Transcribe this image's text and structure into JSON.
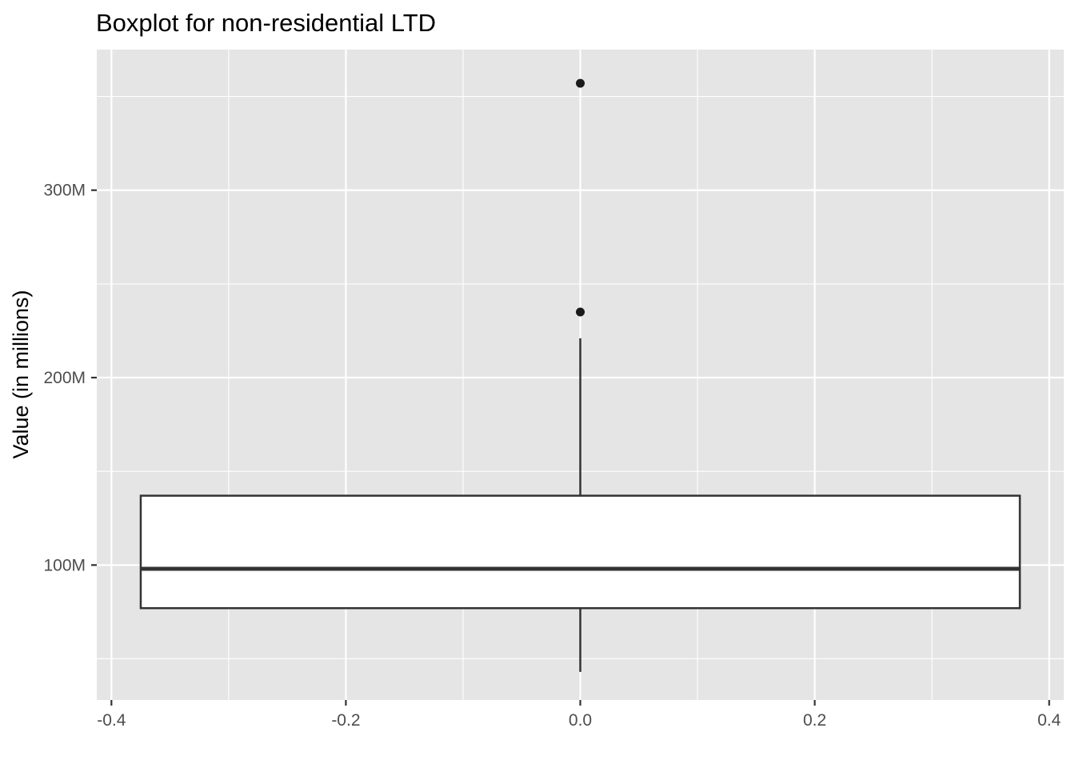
{
  "chart_data": {
    "type": "boxplot",
    "title": "Boxplot for non-residential LTD",
    "xlabel": "",
    "ylabel": "Value (in millions)",
    "x_ticks": [
      -0.4,
      -0.2,
      0.0,
      0.2,
      0.4
    ],
    "x_tick_labels": [
      "-0.4",
      "-0.2",
      "0.0",
      "0.2",
      "0.4"
    ],
    "y_ticks": [
      100,
      200,
      300
    ],
    "y_tick_labels": [
      "100M",
      "200M",
      "300M"
    ],
    "xlim": [
      -0.4125,
      0.4125
    ],
    "ylim": [
      28,
      375
    ],
    "grid": true,
    "box": {
      "x_center": 0.0,
      "x_left": -0.375,
      "x_right": 0.375,
      "whisker_low": 43,
      "q1": 77,
      "median": 98,
      "q3": 137,
      "whisker_high": 221
    },
    "outliers": [
      235,
      357
    ],
    "colors": {
      "panel_background": "#e5e5e5",
      "grid": "#ffffff",
      "box_fill": "#ffffff",
      "box_line": "#333333",
      "point": "#1a1a1a",
      "tick_text": "#4d4d4d"
    }
  }
}
